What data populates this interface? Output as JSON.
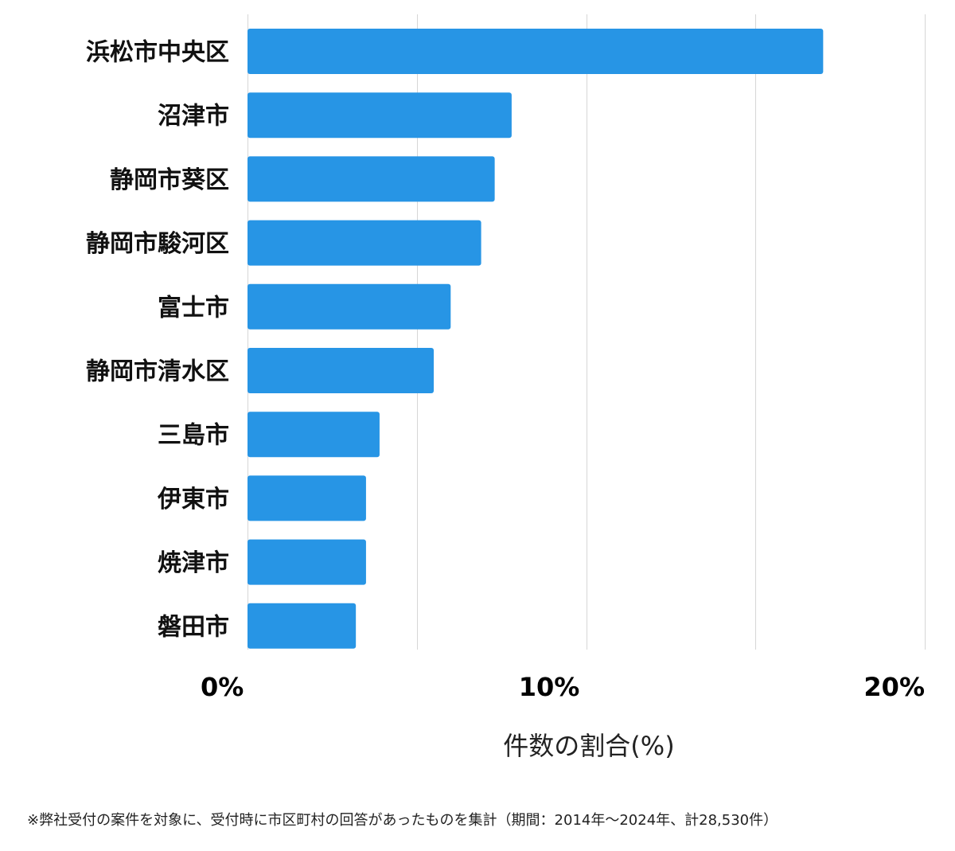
{
  "chart_data": {
    "type": "bar",
    "orientation": "horizontal",
    "categories": [
      "浜松市中央区",
      "沼津市",
      "静岡市葵区",
      "静岡市駿河区",
      "富士市",
      "静岡市清水区",
      "三島市",
      "伊東市",
      "焼津市",
      "磐田市"
    ],
    "values": [
      17.0,
      7.8,
      7.3,
      6.9,
      6.0,
      5.5,
      3.9,
      3.5,
      3.5,
      3.2
    ],
    "xlabel": "件数の割合(%)",
    "ylabel": "",
    "xlim": [
      0,
      20
    ],
    "x_ticks": [
      {
        "value": 0,
        "label": "0%"
      },
      {
        "value": 10,
        "label": "10%"
      },
      {
        "value": 20,
        "label": "20%"
      }
    ],
    "gridlines_at": [
      0,
      5,
      10,
      15,
      20
    ],
    "grid": true,
    "bar_color": "#2795e5",
    "grid_color": "#d6d6d6"
  },
  "footnote": "※弊社受付の案件を対象に、受付時に市区町村の回答があったものを集計（期間：2014年～2024年、計28,530件）"
}
